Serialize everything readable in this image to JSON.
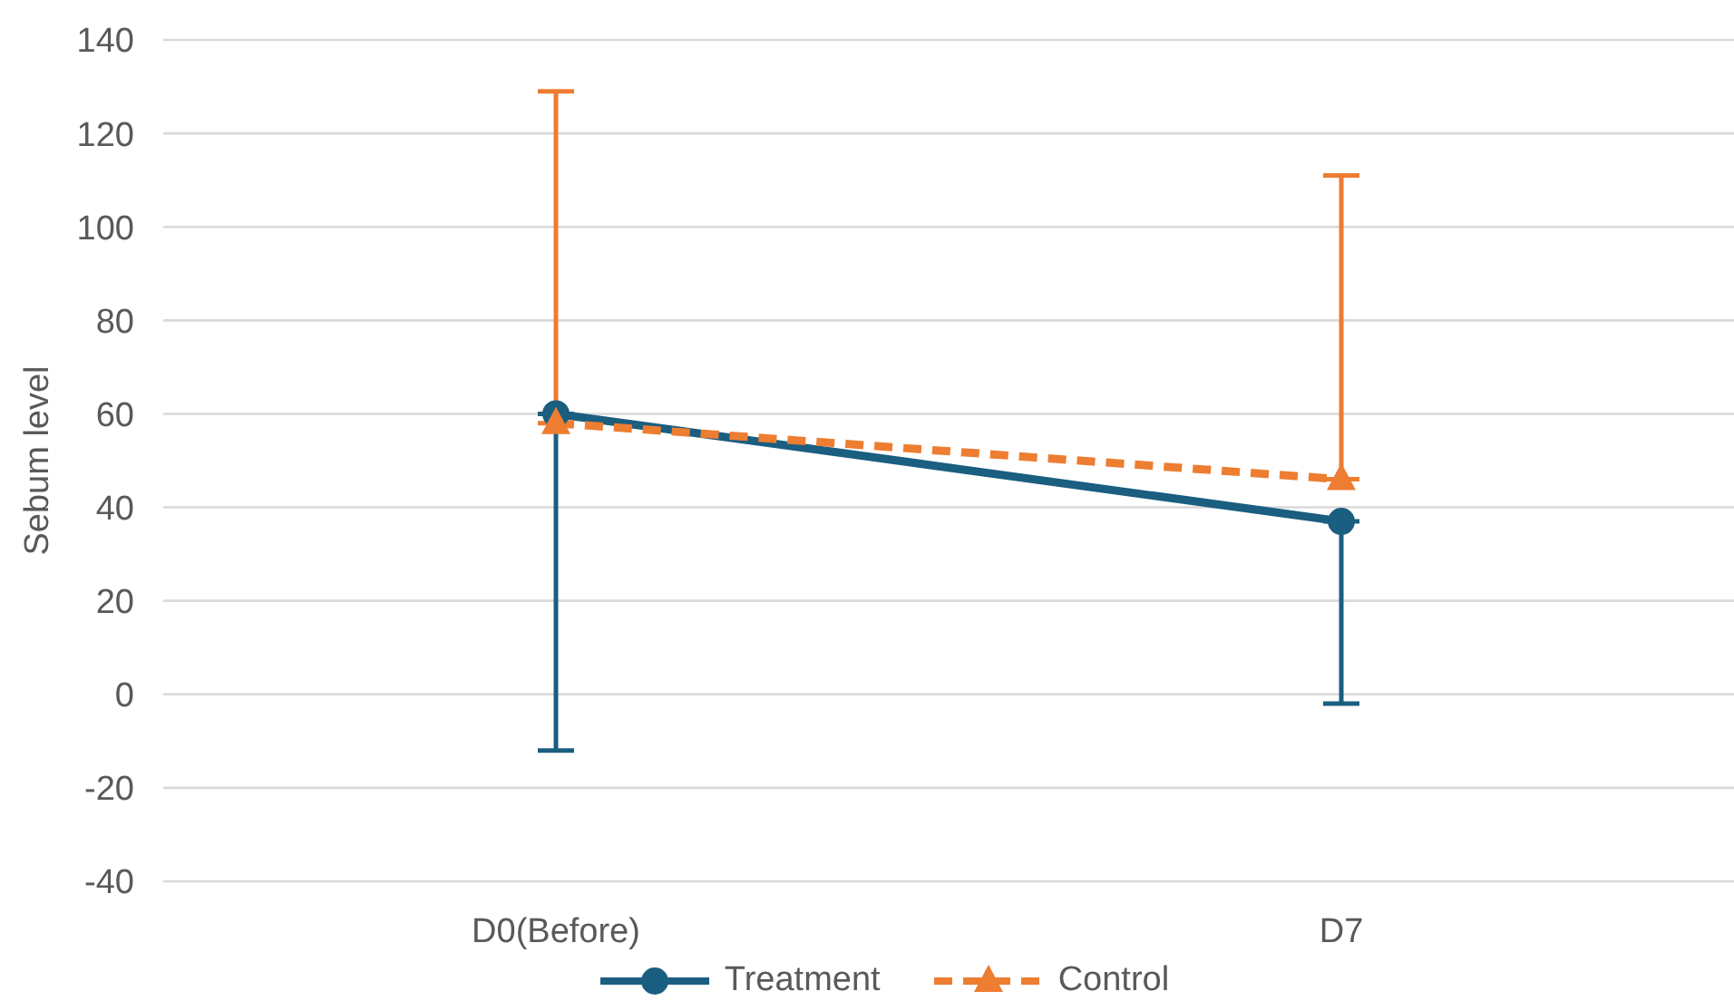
{
  "chart_data": {
    "type": "line",
    "ylabel": "Sebum level",
    "categories": [
      "D0(Before)",
      "D7"
    ],
    "series": [
      {
        "name": "Treatment",
        "color": "#1a5e80",
        "values": [
          60,
          37
        ],
        "errors": [
          [
            -12,
            60
          ],
          [
            -2,
            37
          ]
        ],
        "marker": "circle",
        "line_style": "solid"
      },
      {
        "name": "Control",
        "color": "#ed7d31",
        "values": [
          58,
          46
        ],
        "errors": [
          [
            58,
            129
          ],
          [
            46,
            111
          ]
        ],
        "marker": "triangle",
        "line_style": "dashed"
      }
    ],
    "ylim": [
      -40,
      140
    ],
    "yticks": [
      -40,
      -20,
      0,
      20,
      40,
      60,
      80,
      100,
      120,
      140
    ],
    "grid": "y",
    "legend": "bottom"
  }
}
